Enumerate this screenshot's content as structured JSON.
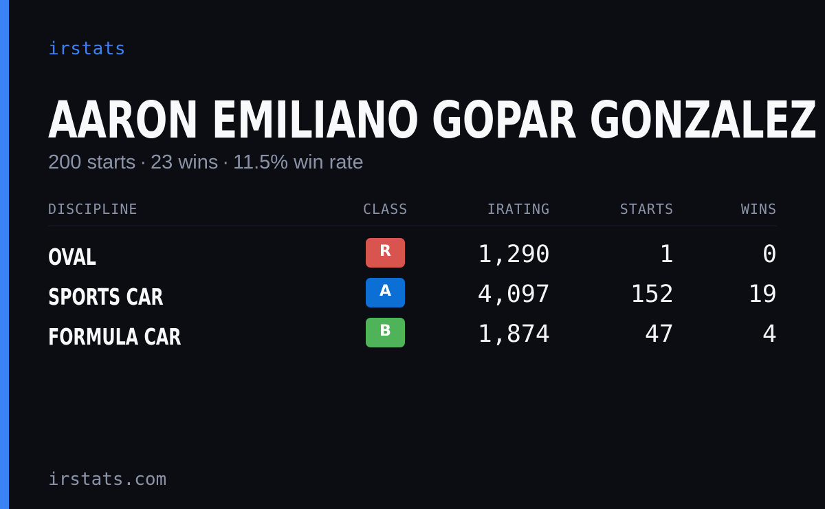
{
  "brand": "irstats",
  "driver": {
    "name": "AARON EMILIANO GOPAR GONZALEZ"
  },
  "summary": {
    "starts": "200 starts",
    "wins": "23 wins",
    "win_rate": "11.5% win rate",
    "separator": "·"
  },
  "table": {
    "headers": {
      "discipline": "DISCIPLINE",
      "class": "CLASS",
      "irating": "IRATING",
      "starts": "STARTS",
      "wins": "WINS"
    },
    "rows": [
      {
        "discipline": "OVAL",
        "class": "R",
        "class_color": "#d9534f",
        "irating": "1,290",
        "starts": "1",
        "wins": "0"
      },
      {
        "discipline": "SPORTS CAR",
        "class": "A",
        "class_color": "#0b6fd6",
        "irating": "4,097",
        "starts": "152",
        "wins": "19"
      },
      {
        "discipline": "FORMULA CAR",
        "class": "B",
        "class_color": "#4fb35a",
        "irating": "1,874",
        "starts": "47",
        "wins": "4"
      }
    ]
  },
  "footer": "irstats.com",
  "colors": {
    "background": "#0b0d13",
    "accent": "#3b82f6",
    "muted_text": "#8b93a7",
    "primary_text": "#f8f9fb"
  }
}
